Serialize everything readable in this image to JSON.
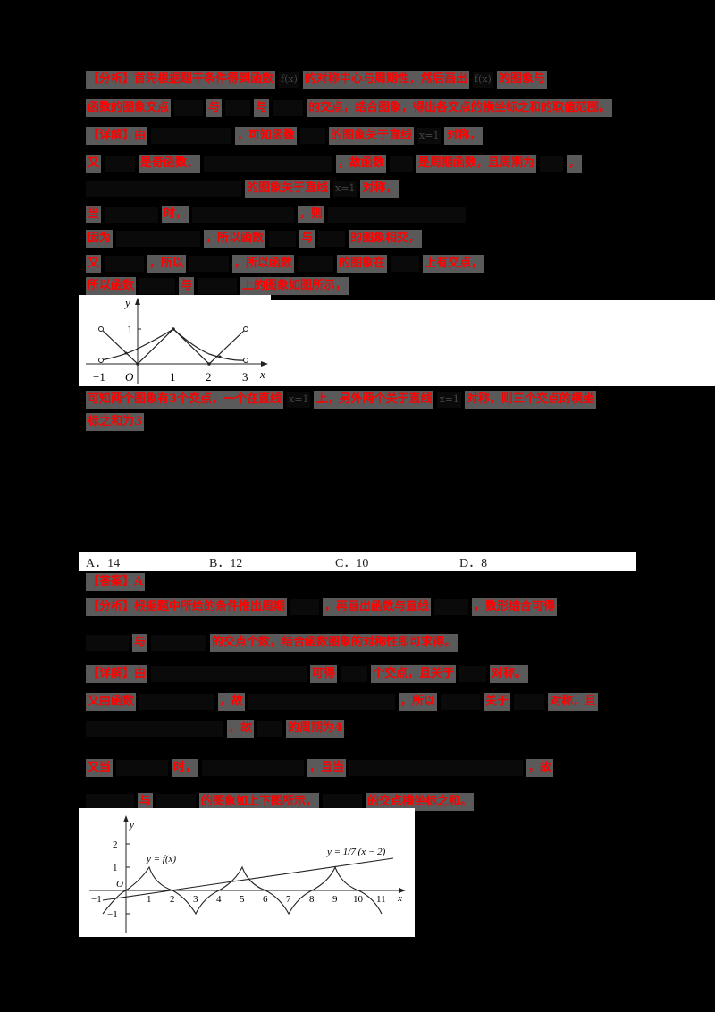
{
  "document": {
    "colors": {
      "background": "#000000",
      "highlight_text": "#ff0000",
      "highlight_bg": "#5a5a5a",
      "figure_bg": "#ffffff"
    },
    "section1": {
      "lines": [
        {
          "segments": [
            "【分析】首先根据题干条件得到函数",
            "f(x)",
            "的对称中心与周期性，然后画出",
            "f(x)",
            "的图象与"
          ]
        },
        {
          "segments": [
            "函数的图象交点",
            "",
            "与",
            "",
            "与",
            "",
            "的交点，结合图象，得出各交点的横坐标之和的取值范围。"
          ]
        },
        {
          "segments": [
            "【详解】由",
            "",
            "，可知函数",
            "",
            "的图象关于直线",
            "x=1",
            "对称，"
          ]
        },
        {
          "segments": [
            "又",
            "",
            "是奇函数，",
            "",
            "，故函数",
            "",
            "是周期函数，且周期为",
            "",
            "，"
          ]
        },
        {
          "segments": [
            "",
            "",
            "的图象关于直线",
            "x=1",
            "对称，"
          ]
        },
        {
          "segments": [
            "当",
            "",
            "时，",
            "",
            "，则",
            ""
          ]
        },
        {
          "segments": [
            "因为",
            "",
            "，所以函数",
            "",
            "与",
            "",
            "的图象相交，"
          ]
        },
        {
          "segments": [
            "又",
            "",
            "，所以",
            "",
            "，所以函数",
            "",
            "的图象在",
            "",
            "上有交点，"
          ]
        },
        {
          "segments": [
            "所以函数",
            "",
            "与",
            "",
            "上的图象如图所示，"
          ]
        }
      ]
    },
    "figure1": {
      "x_ticks": [
        "−1",
        "O",
        "1",
        "2",
        "3"
      ],
      "y_ticks": [
        "1"
      ],
      "x_label": "x",
      "y_label": "y"
    },
    "section2": {
      "lines": [
        {
          "segments": [
            "可知两个图象有3个交点，一个在直线",
            "x=1",
            "上，另外两个关于直线",
            "x=1",
            "对称，则三个交点的横坐"
          ]
        },
        {
          "segments": [
            "标之和为3"
          ]
        }
      ]
    },
    "question": {
      "options": [
        {
          "letter": "A．",
          "value": "14"
        },
        {
          "letter": "B．",
          "value": "12"
        },
        {
          "letter": "C．",
          "value": "10"
        },
        {
          "letter": "D．",
          "value": "8"
        }
      ]
    },
    "section3": {
      "lines": [
        {
          "segments": [
            "【答案】A"
          ]
        },
        {
          "segments": [
            "【分析】根据题中所给的条件推出周期",
            "",
            "，再画出函数与直线",
            "",
            "，数形结合可得"
          ]
        },
        {
          "segments": [
            "",
            "与",
            "",
            "的交点个数，结合函数图象的对称性即可求得。"
          ]
        },
        {
          "segments": [
            "【详解】由",
            "",
            "可得",
            "",
            "个交点，且关于",
            "",
            "对称。"
          ]
        },
        {
          "segments": [
            "又由函数",
            "",
            "，故",
            "",
            "，所以",
            "",
            "关于",
            "",
            "对称，且"
          ]
        },
        {
          "segments": [
            "",
            "，故",
            "",
            "的周期为4"
          ]
        },
        {
          "segments": [
            "又当",
            "",
            "时，",
            "",
            "，且当",
            "",
            "，故"
          ]
        },
        {
          "segments": [
            "",
            "与",
            "",
            "的图象如上下图所示，",
            "",
            "的交点横坐标之和。"
          ]
        }
      ]
    },
    "figure2": {
      "x_ticks": [
        "−1",
        "O",
        "1",
        "2",
        "3",
        "4",
        "5",
        "6",
        "7",
        "8",
        "9",
        "10",
        "11"
      ],
      "y_ticks": [
        "2",
        "1",
        "−1"
      ],
      "x_label": "x",
      "y_label": "y",
      "curve_label": "y = f(x)",
      "line_label": "y = 1/7 (x − 2)"
    }
  }
}
